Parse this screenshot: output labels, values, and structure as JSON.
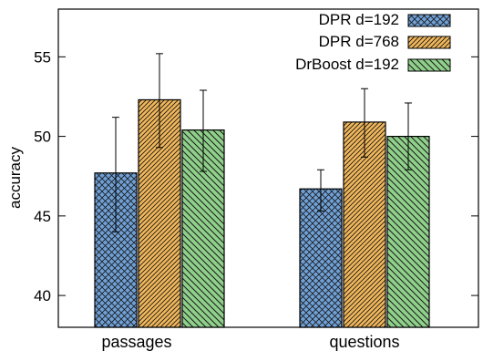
{
  "chart_data": {
    "type": "bar",
    "categories": [
      "passages",
      "questions"
    ],
    "ylabel": "accuracy",
    "xlabel": "",
    "title": "",
    "ylim": [
      38,
      58
    ],
    "yticks": [
      40,
      45,
      50,
      55
    ],
    "grid": false,
    "legend_position": "top-right",
    "series": [
      {
        "name": "DPR d=192",
        "values": [
          47.7,
          46.7
        ],
        "err_low": [
          44.0,
          45.3
        ],
        "err_high": [
          51.2,
          47.9
        ],
        "color": "#6fa0d6",
        "pattern": "crosshatch"
      },
      {
        "name": "DPR d=768",
        "values": [
          52.3,
          50.9
        ],
        "err_low": [
          49.3,
          48.7
        ],
        "err_high": [
          55.2,
          53.0
        ],
        "color": "#f2b75a",
        "pattern": "diagonal-dense"
      },
      {
        "name": "DrBoost d=192",
        "values": [
          50.4,
          50.0
        ],
        "err_low": [
          47.8,
          47.9
        ],
        "err_high": [
          52.9,
          52.1
        ],
        "color": "#8fd08a",
        "pattern": "diagonal-sparse"
      }
    ]
  }
}
